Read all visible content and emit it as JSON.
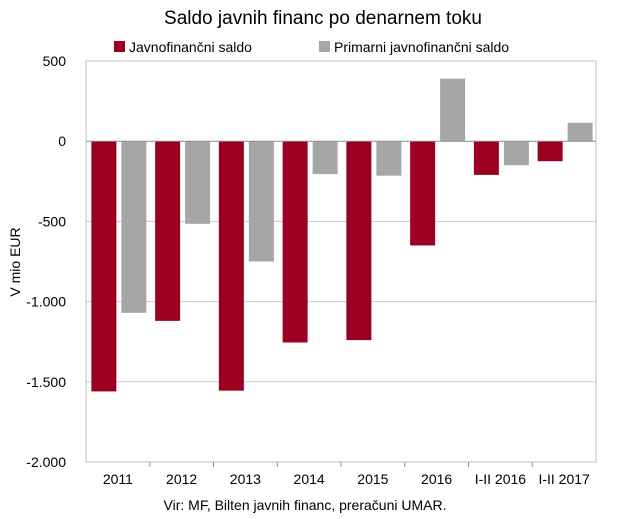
{
  "chart_data": {
    "type": "bar",
    "title": "Saldo javnih financ po denarnem toku",
    "ylabel": "V mio EUR",
    "xlabel": "",
    "source": "Vir: MF, Bilten javnih financ, preračuni UMAR.",
    "categories": [
      "2011",
      "2012",
      "2013",
      "2014",
      "2015",
      "2016",
      "I-II 2016",
      "I-II 2017"
    ],
    "series": [
      {
        "name": "Javnofinančni saldo",
        "color": "#9c0020",
        "values": [
          -1560,
          -1120,
          -1555,
          -1255,
          -1240,
          -650,
          -210,
          -125
        ]
      },
      {
        "name": "Primarni javnofinančni saldo",
        "color": "#a6a6a6",
        "values": [
          -1070,
          -515,
          -750,
          -205,
          -215,
          390,
          -150,
          115
        ]
      }
    ],
    "ylim": [
      -2000,
      500
    ],
    "yticks": [
      500,
      0,
      -500,
      -1000,
      -1500,
      -2000
    ],
    "ytick_labels": [
      "500",
      "0",
      "-500",
      "-1.000",
      "-1.500",
      "-2.000"
    ],
    "grid": true,
    "legend_position": "top"
  }
}
